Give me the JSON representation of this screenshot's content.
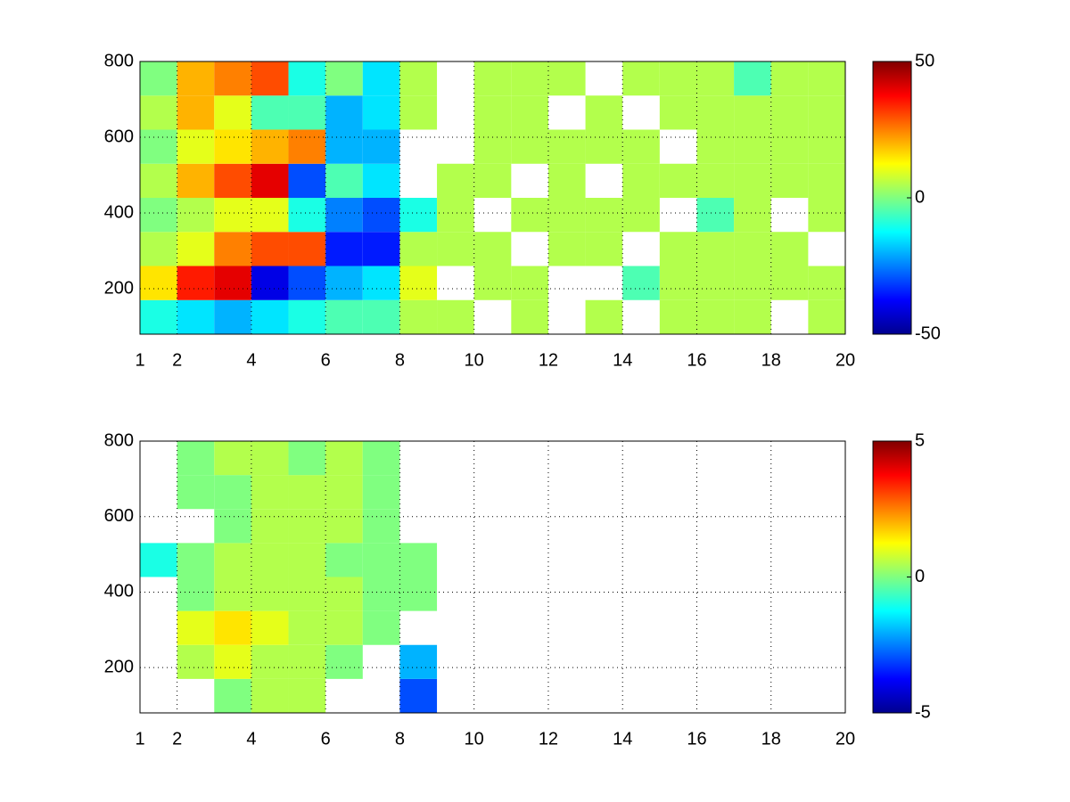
{
  "chart_data": [
    {
      "type": "heatmap",
      "colormap": "jet",
      "grid": true,
      "xlim": [
        1,
        20
      ],
      "xticks": [
        1,
        2,
        4,
        6,
        8,
        10,
        12,
        14,
        16,
        18,
        20
      ],
      "ylim": [
        80,
        800
      ],
      "yticks": [
        200,
        400,
        600,
        800
      ],
      "clim": [
        -50,
        50
      ],
      "cticks": [
        -50,
        0,
        50
      ],
      "xbins": [
        1,
        2,
        3,
        4,
        5,
        6,
        7,
        8,
        9,
        10,
        11,
        12,
        13,
        14,
        15,
        16,
        17,
        18,
        19,
        20
      ],
      "ybins": [
        80,
        170,
        260,
        350,
        440,
        530,
        620,
        710,
        800
      ],
      "values": [
        [
          -10,
          -15,
          -20,
          -15,
          -10,
          -5,
          -5,
          5,
          5,
          null,
          5,
          null,
          5,
          null,
          5,
          5,
          5,
          null,
          5
        ],
        [
          15,
          35,
          40,
          -40,
          -30,
          -20,
          -15,
          10,
          null,
          5,
          5,
          null,
          null,
          -5,
          5,
          5,
          5,
          5,
          5
        ],
        [
          5,
          10,
          25,
          30,
          30,
          -35,
          -35,
          5,
          5,
          5,
          null,
          5,
          5,
          null,
          5,
          5,
          5,
          5,
          null
        ],
        [
          0,
          5,
          10,
          10,
          -10,
          -25,
          -30,
          -10,
          5,
          null,
          5,
          5,
          5,
          5,
          null,
          -5,
          5,
          null,
          5
        ],
        [
          5,
          20,
          30,
          40,
          -30,
          -5,
          -15,
          null,
          5,
          5,
          null,
          5,
          null,
          5,
          5,
          5,
          5,
          5,
          5
        ],
        [
          0,
          10,
          15,
          20,
          25,
          -20,
          -20,
          null,
          null,
          5,
          5,
          5,
          5,
          5,
          null,
          5,
          5,
          5,
          5
        ],
        [
          5,
          20,
          10,
          -5,
          -5,
          -20,
          -15,
          5,
          null,
          5,
          5,
          null,
          5,
          null,
          5,
          5,
          5,
          5,
          5
        ],
        [
          0,
          20,
          25,
          30,
          -10,
          0,
          -15,
          5,
          null,
          5,
          5,
          5,
          null,
          5,
          5,
          5,
          -5,
          5,
          5
        ]
      ]
    },
    {
      "type": "heatmap",
      "colormap": "jet",
      "grid": true,
      "xlim": [
        1,
        20
      ],
      "xticks": [
        1,
        2,
        4,
        6,
        8,
        10,
        12,
        14,
        16,
        18,
        20
      ],
      "ylim": [
        80,
        800
      ],
      "yticks": [
        200,
        400,
        600,
        800
      ],
      "clim": [
        -5,
        5
      ],
      "cticks": [
        -5,
        0,
        5
      ],
      "xbins": [
        1,
        2,
        3,
        4,
        5,
        6,
        7,
        8,
        9,
        10,
        11,
        12,
        13,
        14,
        15,
        16,
        17,
        18,
        19,
        20
      ],
      "ybins": [
        80,
        170,
        260,
        350,
        440,
        530,
        620,
        710,
        800
      ],
      "values": [
        [
          null,
          null,
          0,
          0.5,
          0.5,
          null,
          null,
          -3,
          null,
          null,
          null,
          null,
          null,
          null,
          null,
          null,
          null,
          null,
          null
        ],
        [
          null,
          0.5,
          1,
          0.5,
          0.5,
          0,
          null,
          -2,
          null,
          null,
          null,
          null,
          null,
          null,
          null,
          null,
          null,
          null,
          null
        ],
        [
          null,
          1,
          1.5,
          1,
          0.5,
          0.5,
          0,
          null,
          null,
          null,
          null,
          null,
          null,
          null,
          null,
          null,
          null,
          null,
          null
        ],
        [
          null,
          0,
          0.5,
          0.5,
          0.5,
          0.5,
          0,
          0,
          null,
          null,
          null,
          null,
          null,
          null,
          null,
          null,
          null,
          null,
          null
        ],
        [
          -1,
          0,
          0.5,
          0.5,
          0.5,
          0,
          0,
          0,
          null,
          null,
          null,
          null,
          null,
          null,
          null,
          null,
          null,
          null,
          null
        ],
        [
          null,
          null,
          0,
          0.5,
          0.5,
          0.5,
          0,
          null,
          null,
          null,
          null,
          null,
          null,
          null,
          null,
          null,
          null,
          null,
          null
        ],
        [
          null,
          0,
          0,
          0.5,
          0.5,
          0.5,
          0,
          null,
          null,
          null,
          null,
          null,
          null,
          null,
          null,
          null,
          null,
          null,
          null
        ],
        [
          null,
          0,
          0.5,
          0.5,
          0,
          0.5,
          0,
          null,
          null,
          null,
          null,
          null,
          null,
          null,
          null,
          null,
          null,
          null,
          null
        ]
      ]
    }
  ]
}
